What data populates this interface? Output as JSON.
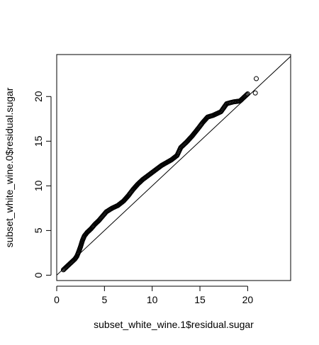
{
  "chart_data": {
    "type": "scatter",
    "subtype": "qq-plot",
    "title": "",
    "xlabel": "subset_white_wine.1$residual.sugar",
    "ylabel": "subset_white_wine.0$residual.sugar",
    "xlim": [
      0,
      24.5
    ],
    "ylim": [
      -0.6,
      24.7
    ],
    "xticks": [
      0,
      5,
      10,
      15,
      20
    ],
    "yticks": [
      0,
      5,
      10,
      15,
      20
    ],
    "grid": false,
    "legend": "none",
    "reference_line": {
      "slope": 1,
      "intercept": 0
    },
    "marker": "open-circle",
    "quantile_curve": [
      [
        0.7,
        0.6
      ],
      [
        1.0,
        0.9
      ],
      [
        1.3,
        1.2
      ],
      [
        1.6,
        1.5
      ],
      [
        1.9,
        1.8
      ],
      [
        2.1,
        2.1
      ],
      [
        2.3,
        2.6
      ],
      [
        2.5,
        3.2
      ],
      [
        2.7,
        3.9
      ],
      [
        2.9,
        4.4
      ],
      [
        3.2,
        4.8
      ],
      [
        3.6,
        5.2
      ],
      [
        4.0,
        5.7
      ],
      [
        4.4,
        6.1
      ],
      [
        4.8,
        6.6
      ],
      [
        5.2,
        7.1
      ],
      [
        5.8,
        7.5
      ],
      [
        6.4,
        7.8
      ],
      [
        7.0,
        8.3
      ],
      [
        7.5,
        8.9
      ],
      [
        8.0,
        9.6
      ],
      [
        8.5,
        10.2
      ],
      [
        9.0,
        10.7
      ],
      [
        9.5,
        11.1
      ],
      [
        10.0,
        11.5
      ],
      [
        10.5,
        11.9
      ],
      [
        11.0,
        12.3
      ],
      [
        11.5,
        12.6
      ],
      [
        12.0,
        12.9
      ],
      [
        12.6,
        13.4
      ],
      [
        13.0,
        14.3
      ],
      [
        13.6,
        14.9
      ],
      [
        14.2,
        15.6
      ],
      [
        14.8,
        16.4
      ],
      [
        15.3,
        17.1
      ],
      [
        15.8,
        17.7
      ],
      [
        16.4,
        17.9
      ],
      [
        17.2,
        18.3
      ],
      [
        17.8,
        19.2
      ],
      [
        18.5,
        19.4
      ],
      [
        19.2,
        19.5
      ],
      [
        19.7,
        20.0
      ],
      [
        20.0,
        20.3
      ]
    ],
    "outliers": [
      [
        20.8,
        20.4
      ],
      [
        20.9,
        22.0
      ]
    ]
  }
}
